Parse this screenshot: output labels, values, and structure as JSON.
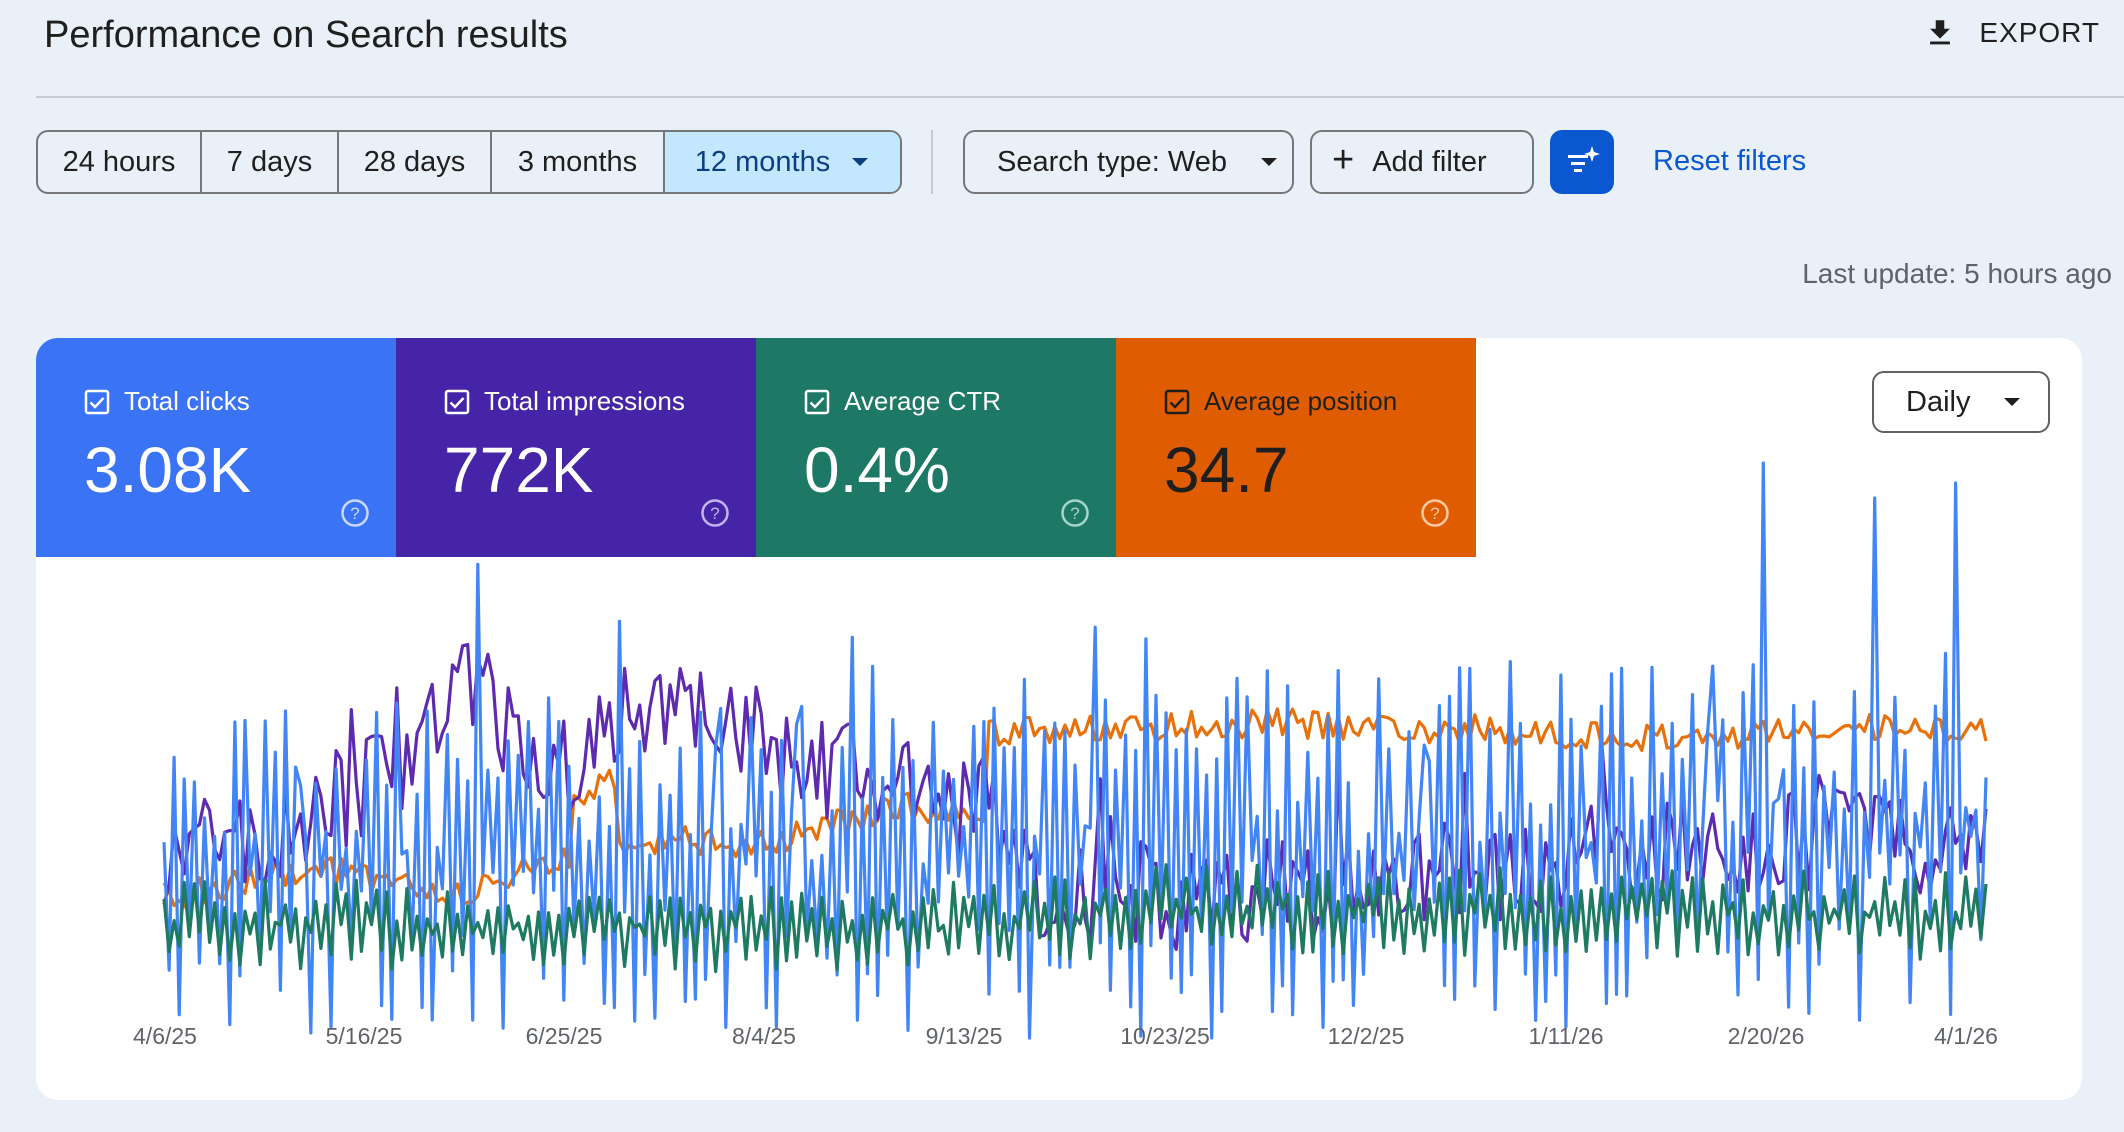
{
  "header": {
    "title": "Performance on Search results",
    "export_label": "EXPORT"
  },
  "date_ranges": [
    {
      "label": "24 hours",
      "width": 164
    },
    {
      "label": "7 days",
      "width": 137
    },
    {
      "label": "28 days",
      "width": 153
    },
    {
      "label": "3 months",
      "width": 173
    },
    {
      "label": "12 months",
      "width": 235,
      "active": true
    }
  ],
  "filters": {
    "search_type": "Search type: Web",
    "add_filter": "Add filter",
    "reset": "Reset filters"
  },
  "last_update": "Last update: 5 hours ago",
  "metrics": [
    {
      "label": "Total clicks",
      "value": "3.08K",
      "color": "#3b73f5"
    },
    {
      "label": "Total impressions",
      "value": "772K",
      "color": "#4524a8"
    },
    {
      "label": "Average CTR",
      "value": "0.4%",
      "color": "#1d7866"
    },
    {
      "label": "Average position",
      "value": "34.7",
      "color": "#e05c00"
    }
  ],
  "granularity": "Daily",
  "chart_data": {
    "type": "line",
    "x_ticks": [
      "4/6/25",
      "5/16/25",
      "6/25/25",
      "8/4/25",
      "9/13/25",
      "10/23/25",
      "12/2/25",
      "1/11/26",
      "2/20/26",
      "4/1/26"
    ],
    "days": 361,
    "series": [
      {
        "name": "Total clicks",
        "color": "#4285f4"
      },
      {
        "name": "Total impressions",
        "color": "#5e2ab0"
      },
      {
        "name": "Average CTR",
        "color": "#1f7a62"
      },
      {
        "name": "Average position",
        "color": "#e8710a"
      }
    ],
    "grid": false,
    "legend": "none"
  }
}
